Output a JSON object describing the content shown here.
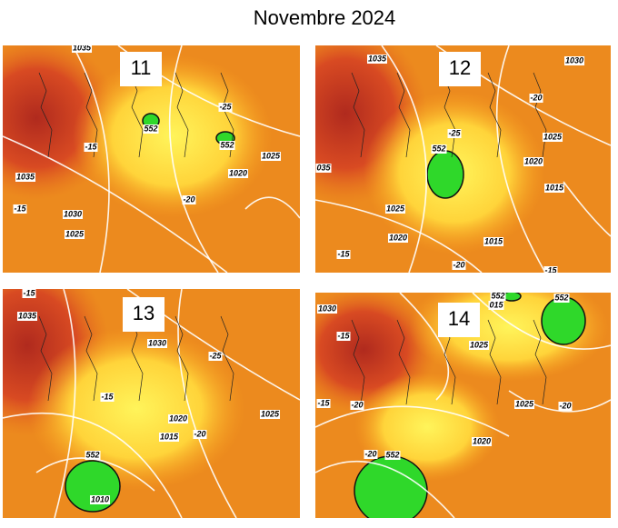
{
  "title": "Novembre 2024",
  "panels": [
    {
      "day": "11",
      "labels": [
        "1035",
        "552",
        "-25",
        "552",
        "-15",
        "1035",
        "1020",
        "1025",
        "-20",
        "-15",
        "1030",
        "1025"
      ]
    },
    {
      "day": "12",
      "labels": [
        "1035",
        "1030",
        "-20",
        "-25",
        "1025",
        "552",
        "1020",
        "035",
        "1015",
        "1025",
        "1020",
        "1015",
        "-15",
        "-20",
        "-15"
      ]
    },
    {
      "day": "13",
      "labels": [
        "-15",
        "1035",
        "1030",
        "-25",
        "-15",
        "1020",
        "1025",
        "1015",
        "-20",
        "552",
        "1010"
      ]
    },
    {
      "day": "14",
      "labels": [
        "1030",
        "552",
        "015",
        "552",
        "-15",
        "1025",
        "-20",
        "-15",
        "1025",
        "-20",
        "1020",
        "-20",
        "552"
      ]
    }
  ]
}
